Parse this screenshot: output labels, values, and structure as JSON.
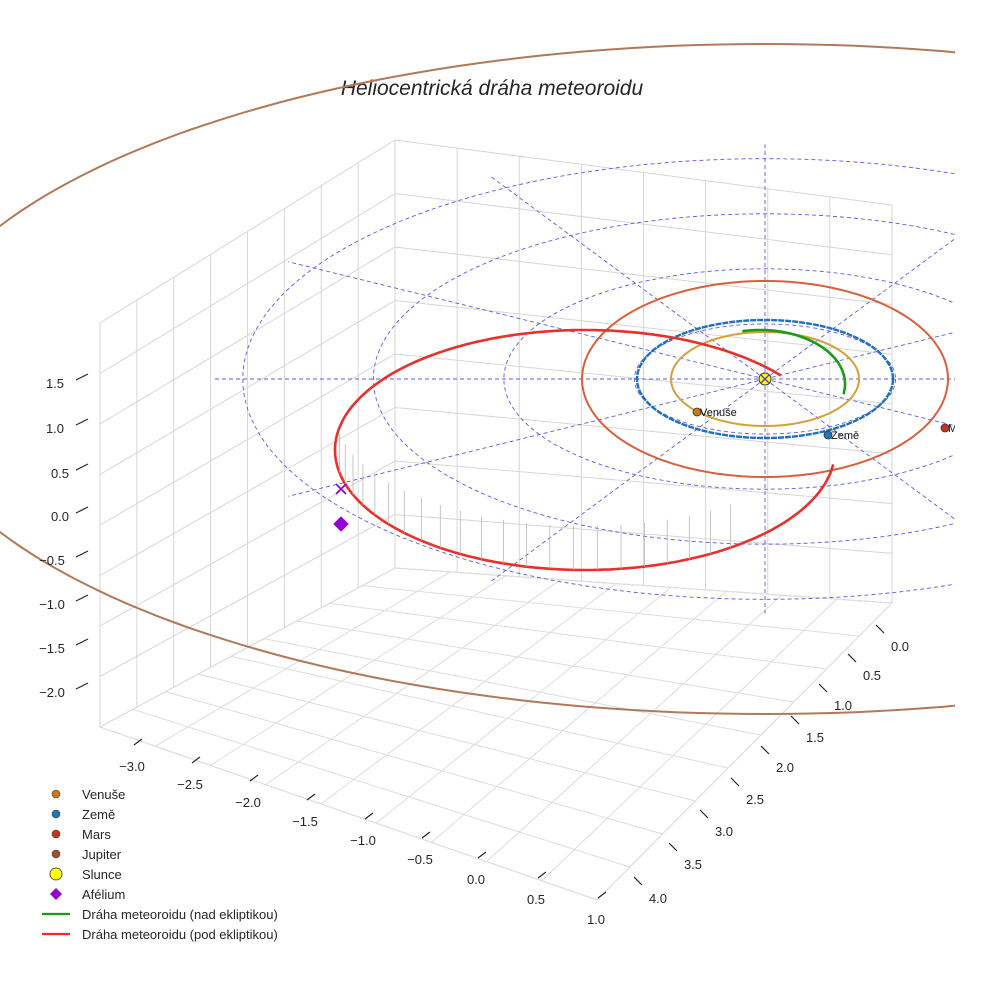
{
  "chart_data": {
    "type": "line3d",
    "title": "Heliocentrická dráha meteoroidu",
    "x_ticks": [
      -3.0,
      -2.5,
      -2.0,
      -1.5,
      -1.0,
      -0.5,
      0.0,
      0.5,
      1.0
    ],
    "y_ticks": [
      0.0,
      0.5,
      1.0,
      1.5,
      2.0,
      2.5,
      3.0,
      3.5,
      4.0
    ],
    "z_ticks": [
      1.5,
      1.0,
      0.5,
      0.0,
      -0.5,
      -1.0,
      -1.5,
      -2.0
    ],
    "planets": [
      {
        "name": "Venuše",
        "orbit_radius_au": 0.72,
        "color": "#d4a03c",
        "marker_color": "#c8781e"
      },
      {
        "name": "Země",
        "orbit_radius_au": 1.0,
        "color": "#1f6fbf",
        "marker_color": "#1f77b4"
      },
      {
        "name": "Mars",
        "orbit_radius_au": 1.52,
        "color": "#d9603b",
        "marker_color": "#c0391b"
      },
      {
        "name": "Jupiter",
        "orbit_radius_au": 5.2,
        "color": "#b07a5a",
        "marker_color": "#a0522d"
      }
    ],
    "planet_labels": [
      "Venuše",
      "Země",
      "Mar"
    ],
    "sun": {
      "name": "Slunce",
      "color": "#ffff00"
    },
    "aphelion": {
      "name": "Afélium",
      "color": "#9400d3"
    },
    "ecliptic_grid_radii_au": [
      1,
      2,
      3,
      4
    ],
    "meteoroid_orbit": {
      "above_ecliptic": {
        "name": "Dráha meteoroidu (nad ekliptikou)",
        "color": "#1a9c1a"
      },
      "below_ecliptic": {
        "name": "Dráha meteoroidu (pod ekliptikou)",
        "color": "#e8302c"
      }
    },
    "legend": [
      {
        "label": "Venuše",
        "kind": "dot",
        "color": "#c8781e"
      },
      {
        "label": "Země",
        "kind": "dot",
        "color": "#1f77b4"
      },
      {
        "label": "Mars",
        "kind": "dot",
        "color": "#c0391b"
      },
      {
        "label": "Jupiter",
        "kind": "dot",
        "color": "#a0522d"
      },
      {
        "label": "Slunce",
        "kind": "bigdot",
        "color": "#ffff00"
      },
      {
        "label": "Afélium",
        "kind": "diamond",
        "color": "#9400d3"
      },
      {
        "label": "Dráha meteoroidu (nad ekliptikou)",
        "kind": "line",
        "color": "#1a9c1a"
      },
      {
        "label": "Dráha meteoroidu (pod ekliptikou)",
        "kind": "line",
        "color": "#e8302c"
      }
    ],
    "legend_position": "bottom-left"
  }
}
